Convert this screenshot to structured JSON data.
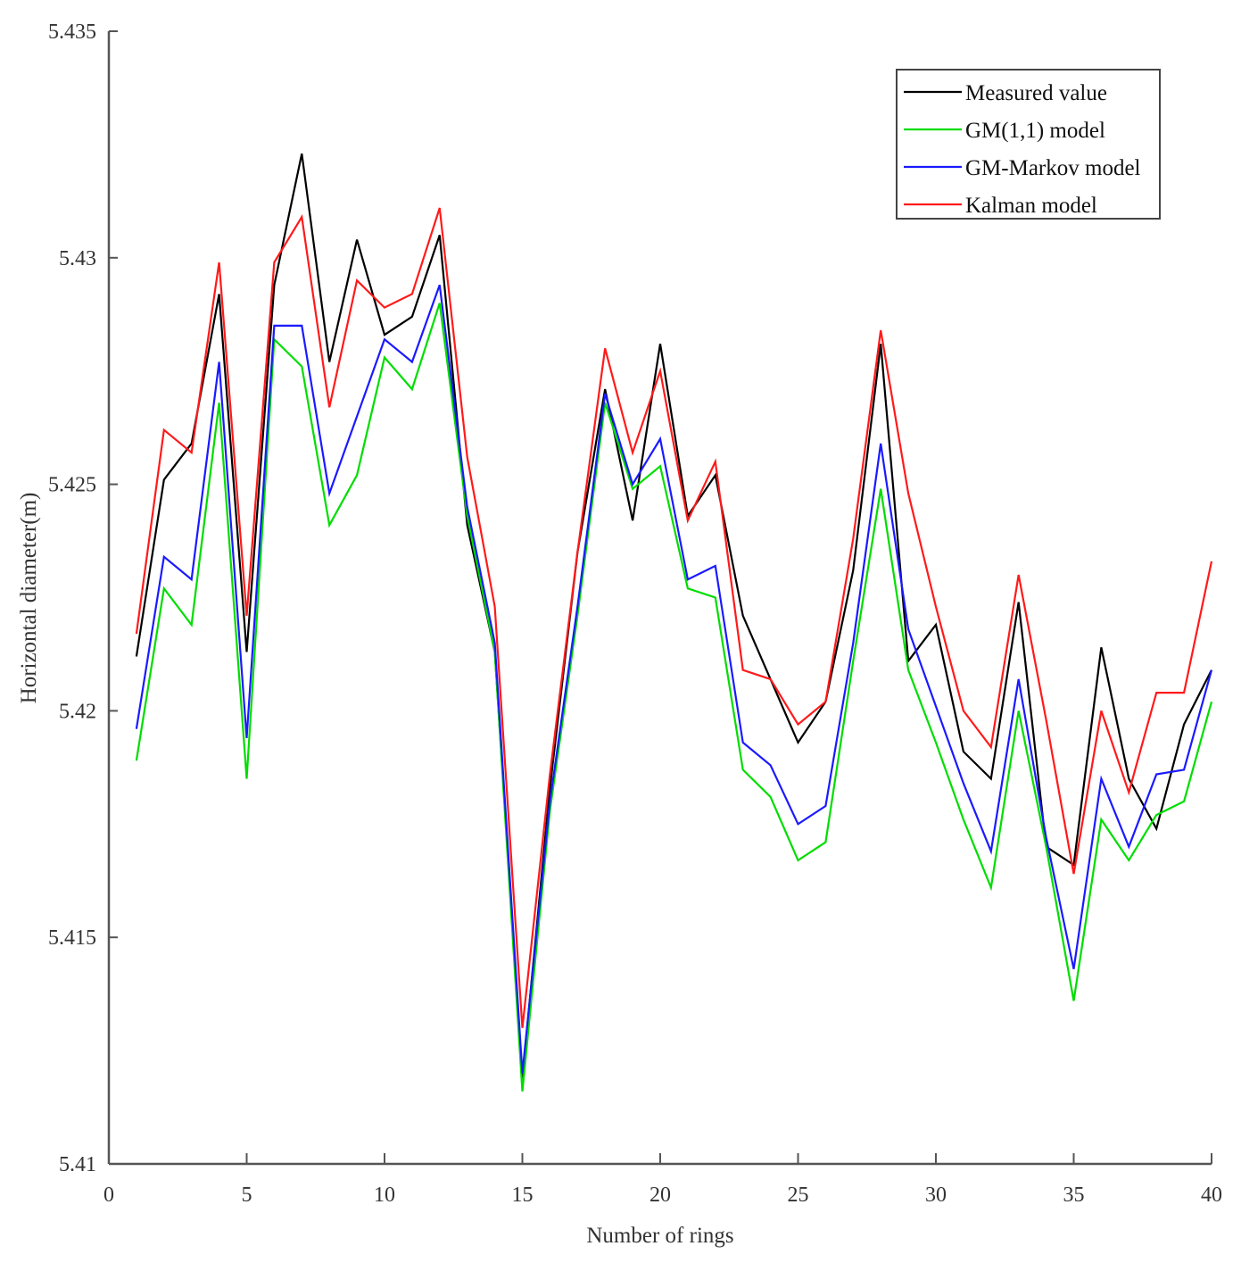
{
  "chart_data": {
    "type": "line",
    "title": "",
    "xlabel": "Number of rings",
    "ylabel": "Horizontal diameter(m)",
    "xlim": [
      0,
      40
    ],
    "ylim": [
      5.41,
      5.435
    ],
    "xticks": [
      "0",
      "5",
      "10",
      "15",
      "20",
      "25",
      "30",
      "35",
      "40"
    ],
    "yticks": [
      "5.41",
      "5.415",
      "5.42",
      "5.425",
      "5.43",
      "5.435"
    ],
    "grid": false,
    "legend_position": "upper right",
    "x": [
      1,
      2,
      3,
      4,
      5,
      6,
      7,
      8,
      9,
      10,
      11,
      12,
      13,
      14,
      15,
      16,
      17,
      18,
      19,
      20,
      21,
      22,
      23,
      24,
      25,
      26,
      27,
      28,
      29,
      30,
      31,
      32,
      33,
      34,
      35,
      36,
      37,
      38,
      39,
      40
    ],
    "series": [
      {
        "name": "Measured value",
        "color": "#000000",
        "values": [
          5.4212,
          5.4251,
          5.4259,
          5.4292,
          5.4213,
          5.4294,
          5.4323,
          5.4277,
          5.4304,
          5.4283,
          5.4287,
          5.4305,
          5.4241,
          5.4213,
          5.4119,
          5.4183,
          5.4235,
          5.4271,
          5.4242,
          5.4281,
          5.4243,
          5.4252,
          5.4221,
          5.4207,
          5.4193,
          5.4202,
          5.4231,
          5.4281,
          5.4211,
          5.4219,
          5.4191,
          5.4185,
          5.4224,
          5.417,
          5.4166,
          5.4214,
          5.4185,
          5.4174,
          5.4197,
          5.4209
        ]
      },
      {
        "name": "GM(1,1) model",
        "color": "#00dd00",
        "values": [
          5.4189,
          5.4227,
          5.4219,
          5.4268,
          5.4185,
          5.4282,
          5.4276,
          5.4241,
          5.4252,
          5.4278,
          5.4271,
          5.429,
          5.4243,
          5.4213,
          5.4116,
          5.4178,
          5.4221,
          5.4268,
          5.4249,
          5.4254,
          5.4227,
          5.4225,
          5.4187,
          5.4181,
          5.4167,
          5.4171,
          5.4211,
          5.4249,
          5.4209,
          5.4193,
          5.4176,
          5.4161,
          5.42,
          5.417,
          5.4136,
          5.4176,
          5.4167,
          5.4177,
          5.418,
          5.4202
        ]
      },
      {
        "name": "GM-Markov model",
        "color": "#1a1aff",
        "values": [
          5.4196,
          5.4234,
          5.4229,
          5.4277,
          5.4194,
          5.4285,
          5.4285,
          5.4248,
          5.4265,
          5.4282,
          5.4277,
          5.4294,
          5.4245,
          5.4215,
          5.412,
          5.418,
          5.4223,
          5.427,
          5.425,
          5.426,
          5.4229,
          5.4232,
          5.4193,
          5.4188,
          5.4175,
          5.4179,
          5.4215,
          5.4259,
          5.4218,
          5.4201,
          5.4184,
          5.4169,
          5.4207,
          5.4172,
          5.4143,
          5.4185,
          5.417,
          5.4186,
          5.4187,
          5.4209
        ]
      },
      {
        "name": "Kalman model",
        "color": "#ff1a1a",
        "values": [
          5.4217,
          5.4262,
          5.4257,
          5.4299,
          5.4221,
          5.4299,
          5.4309,
          5.4267,
          5.4295,
          5.4289,
          5.4292,
          5.4311,
          5.4256,
          5.4223,
          5.413,
          5.4186,
          5.4235,
          5.428,
          5.4257,
          5.4275,
          5.4242,
          5.4255,
          5.4209,
          5.4207,
          5.4197,
          5.4202,
          5.4238,
          5.4284,
          5.4248,
          5.4223,
          5.42,
          5.4192,
          5.423,
          5.4198,
          5.4164,
          5.42,
          5.4182,
          5.4204,
          5.4204,
          5.4233
        ]
      }
    ]
  }
}
